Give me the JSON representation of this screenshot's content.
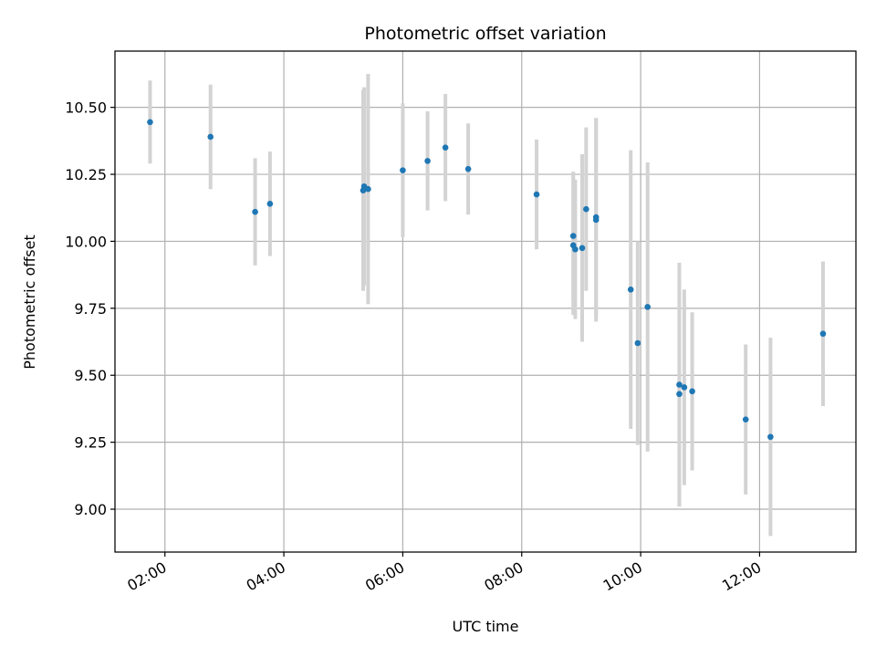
{
  "chart_data": {
    "type": "scatter",
    "title": "Photometric offset variation",
    "xlabel": "UTC time",
    "ylabel": "Photometric offset",
    "x_tick_labels": [
      "02:00",
      "04:00",
      "06:00",
      "08:00",
      "10:00",
      "12:00"
    ],
    "x_tick_hours": [
      2,
      4,
      6,
      8,
      10,
      12
    ],
    "xlim_hours": [
      1.16,
      13.62
    ],
    "y_ticks": [
      9.0,
      9.25,
      9.5,
      9.75,
      10.0,
      10.25,
      10.5
    ],
    "y_tick_labels": [
      "9.00",
      "9.25",
      "9.50",
      "9.75",
      "10.00",
      "10.25",
      "10.50"
    ],
    "ylim": [
      8.84,
      10.71
    ],
    "grid": true,
    "colors": {
      "point": "#1f77b4",
      "errorbar": "#d3d3d3",
      "grid": "#b0b0b0"
    },
    "points": [
      {
        "x": "01:45",
        "y": 10.445,
        "yerr": 0.155
      },
      {
        "x": "02:46",
        "y": 10.39,
        "yerr": 0.195
      },
      {
        "x": "03:31",
        "y": 10.11,
        "yerr": 0.2
      },
      {
        "x": "03:46",
        "y": 10.14,
        "yerr": 0.195
      },
      {
        "x": "05:20",
        "y": 10.19,
        "yerr": 0.375
      },
      {
        "x": "05:21",
        "y": 10.205,
        "yerr": 0.37
      },
      {
        "x": "05:25",
        "y": 10.195,
        "yerr": 0.43
      },
      {
        "x": "06:00",
        "y": 10.265,
        "yerr": 0.25
      },
      {
        "x": "06:25",
        "y": 10.3,
        "yerr": 0.185
      },
      {
        "x": "06:43",
        "y": 10.35,
        "yerr": 0.2
      },
      {
        "x": "07:06",
        "y": 10.27,
        "yerr": 0.17
      },
      {
        "x": "08:15",
        "y": 10.175,
        "yerr": 0.205
      },
      {
        "x": "08:52",
        "y": 10.02,
        "yerr": 0.24
      },
      {
        "x": "08:52",
        "y": 9.985,
        "yerr": 0.26
      },
      {
        "x": "08:54",
        "y": 9.97,
        "yerr": 0.26
      },
      {
        "x": "09:01",
        "y": 9.975,
        "yerr": 0.35
      },
      {
        "x": "09:05",
        "y": 10.12,
        "yerr": 0.305
      },
      {
        "x": "09:15",
        "y": 10.09,
        "yerr": 0.37
      },
      {
        "x": "09:15",
        "y": 10.08,
        "yerr": 0.38
      },
      {
        "x": "09:50",
        "y": 9.82,
        "yerr": 0.52
      },
      {
        "x": "09:57",
        "y": 9.62,
        "yerr": 0.38
      },
      {
        "x": "10:07",
        "y": 9.755,
        "yerr": 0.54
      },
      {
        "x": "10:39",
        "y": 9.465,
        "yerr": 0.455
      },
      {
        "x": "10:39",
        "y": 9.43,
        "yerr": 0.42
      },
      {
        "x": "10:44",
        "y": 9.455,
        "yerr": 0.365
      },
      {
        "x": "10:52",
        "y": 9.44,
        "yerr": 0.295
      },
      {
        "x": "11:46",
        "y": 9.335,
        "yerr": 0.28
      },
      {
        "x": "12:11",
        "y": 9.27,
        "yerr": 0.37
      },
      {
        "x": "13:04",
        "y": 9.655,
        "yerr": 0.27
      }
    ]
  }
}
